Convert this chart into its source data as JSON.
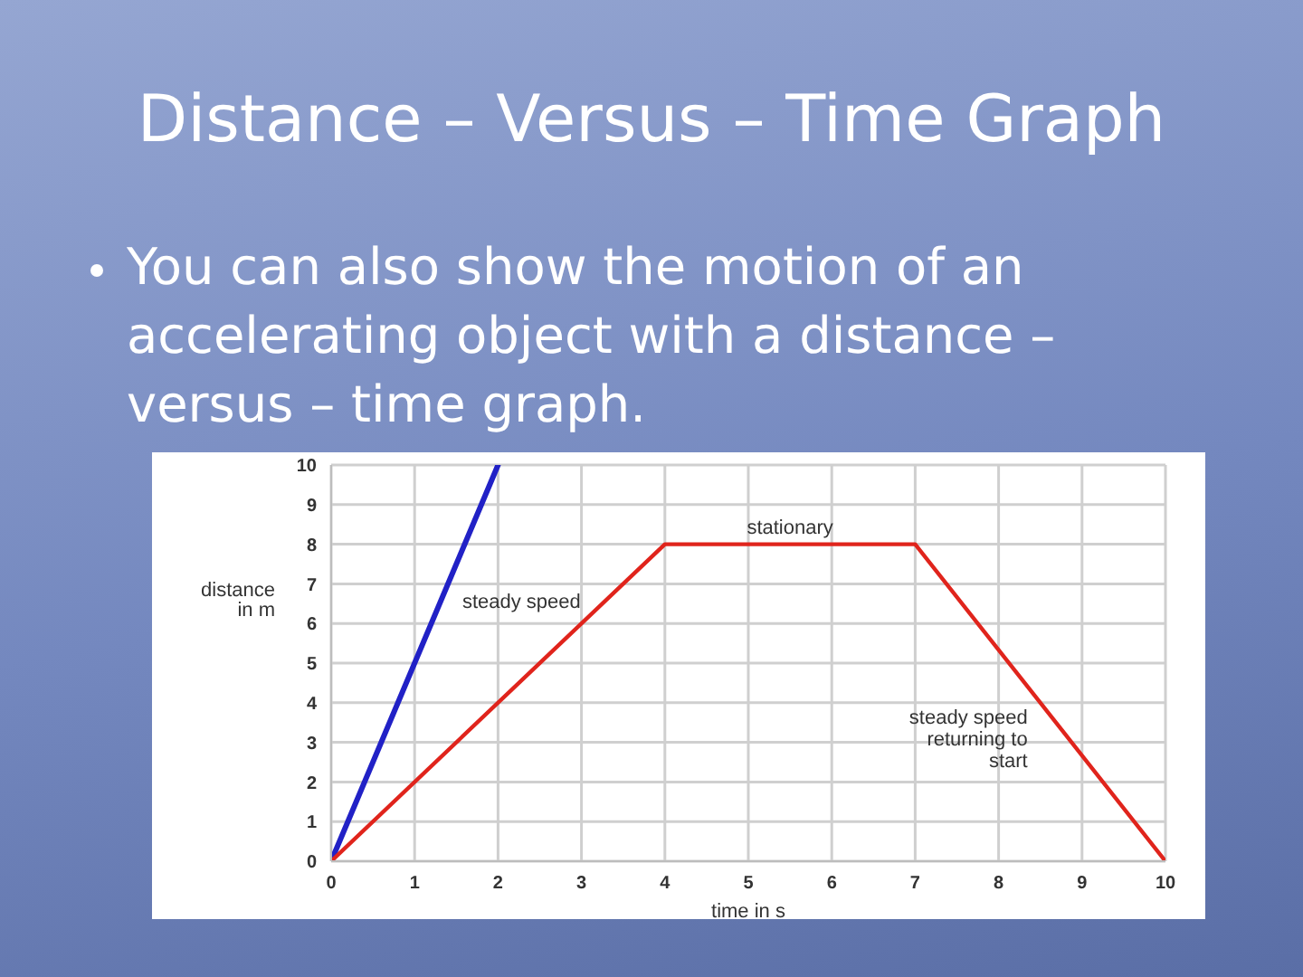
{
  "chart_data": {
    "type": "line",
    "title": "Distance – Versus – Time Graph",
    "subtitle": "You can also show the motion of an accelerating object with a distance – versus – time graph.",
    "xlabel": "time in s",
    "ylabel": "distance in m",
    "series": [
      {
        "color": "#2121c6",
        "x": [
          0,
          2
        ],
        "values": [
          0,
          10
        ]
      },
      {
        "color": "#e0241c",
        "x": [
          0,
          4,
          7,
          10
        ],
        "values": [
          0,
          8,
          8,
          0
        ]
      }
    ],
    "xlim": [
      0,
      10
    ],
    "ylim": [
      0,
      10
    ],
    "xticks": [
      0,
      1,
      2,
      3,
      4,
      5,
      6,
      7,
      8,
      9,
      10
    ],
    "yticks": [
      0,
      1,
      2,
      3,
      4,
      5,
      6,
      7,
      8,
      9,
      10
    ],
    "grid": true,
    "marker": "none",
    "annotations": [
      {
        "text": "steady speed",
        "x": 3.1,
        "y": 6.2
      },
      {
        "text": "stationary",
        "x": 5.5,
        "y": 8
      },
      {
        "text": "steady speed returning to start",
        "x": 8.5,
        "y": 4
      }
    ]
  }
}
